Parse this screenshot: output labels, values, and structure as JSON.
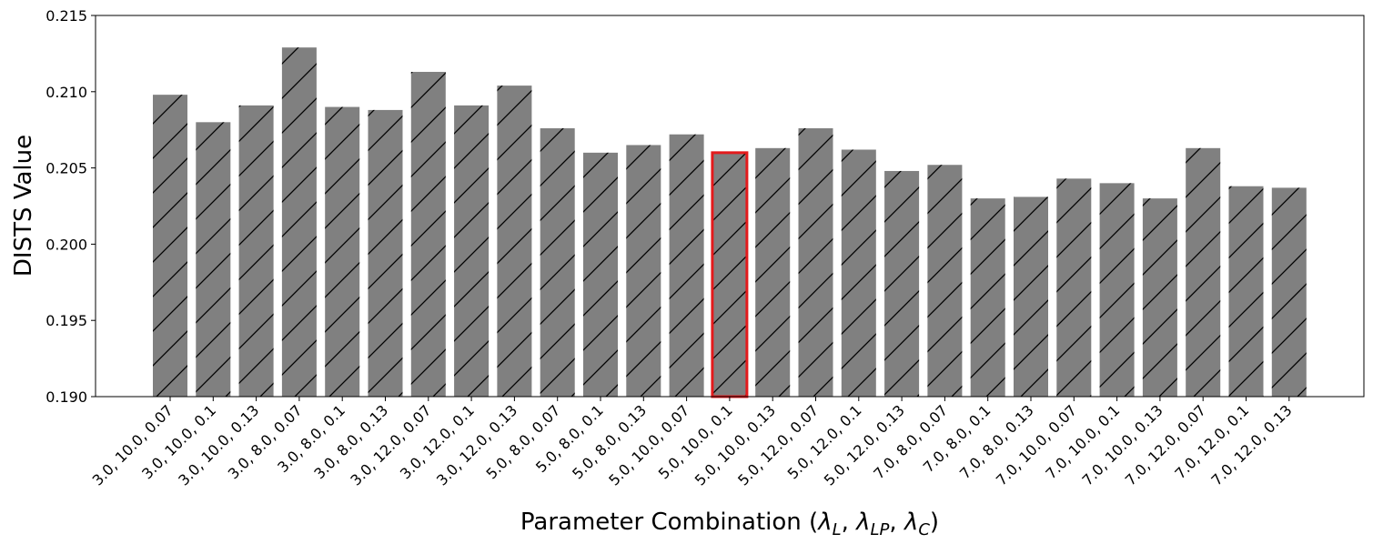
{
  "chart_data": {
    "type": "bar",
    "xlabel": {
      "prefix": "Parameter Combination (",
      "sym1": "λ",
      "sub1": "L",
      "sep1": ", ",
      "sym2": "λ",
      "sub2": "LP",
      "sep2": ", ",
      "sym3": "λ",
      "sub3": "C",
      "suffix": ")"
    },
    "ylabel": "DISTS Value",
    "ylim": [
      0.19,
      0.215
    ],
    "yticks": [
      "0.190",
      "0.195",
      "0.200",
      "0.205",
      "0.210",
      "0.215"
    ],
    "categories": [
      "3.0, 10.0, 0.07",
      "3.0, 10.0, 0.1",
      "3.0, 10.0, 0.13",
      "3.0, 8.0, 0.07",
      "3.0, 8.0, 0.1",
      "3.0, 8.0, 0.13",
      "3.0, 12.0, 0.07",
      "3.0, 12.0, 0.1",
      "3.0, 12.0, 0.13",
      "5.0, 8.0, 0.07",
      "5.0, 8.0, 0.1",
      "5.0, 8.0, 0.13",
      "5.0, 10.0, 0.07",
      "5.0, 10.0, 0.1",
      "5.0, 10.0, 0.13",
      "5.0, 12.0, 0.07",
      "5.0, 12.0, 0.1",
      "5.0, 12.0, 0.13",
      "7.0, 8.0, 0.07",
      "7.0, 8.0, 0.1",
      "7.0, 8.0, 0.13",
      "7.0, 10.0, 0.07",
      "7.0, 10.0, 0.1",
      "7.0, 10.0, 0.13",
      "7.0, 12.0, 0.07",
      "7.0, 12.0, 0.1",
      "7.0, 12.0, 0.13"
    ],
    "values": [
      0.2098,
      0.208,
      0.2091,
      0.2129,
      0.209,
      0.2088,
      0.2113,
      0.2091,
      0.2104,
      0.2076,
      0.206,
      0.2065,
      0.2072,
      0.206,
      0.2063,
      0.2076,
      0.2062,
      0.2048,
      0.2052,
      0.203,
      0.2031,
      0.2043,
      0.204,
      0.203,
      0.2063,
      0.2038,
      0.2037
    ],
    "highlight_index": 13,
    "bar_color": "#808080",
    "hatch": "diagonal",
    "highlight_edge_color": "#e31a1c",
    "grid": false
  }
}
